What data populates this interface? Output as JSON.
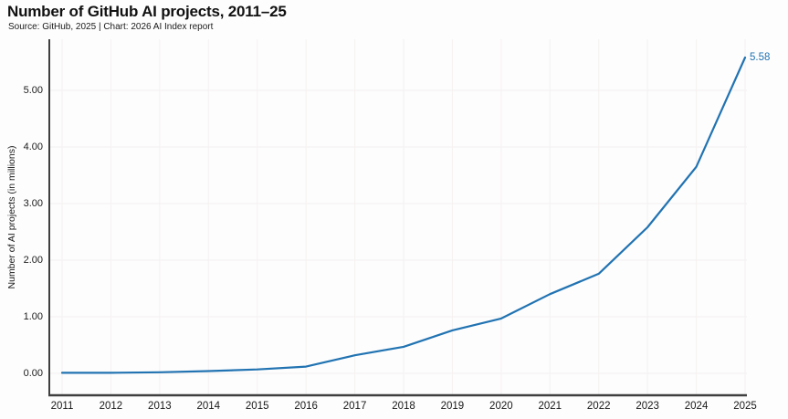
{
  "header": {
    "title": "Number of GitHub AI projects, 2011–25",
    "source_line": "Source: GitHub, 2025 | Chart: 2026 AI Index report"
  },
  "chart_data": {
    "type": "line",
    "title": "Number of GitHub AI projects, 2011–25",
    "subtitle": "Source: GitHub, 2025 | Chart: 2026 AI Index report",
    "xlabel": "",
    "ylabel": "Number of AI projects (in millions)",
    "x": [
      2011,
      2012,
      2013,
      2014,
      2015,
      2016,
      2017,
      2018,
      2019,
      2020,
      2021,
      2022,
      2023,
      2024,
      2025
    ],
    "series": [
      {
        "name": "Number of AI projects (in millions)",
        "values": [
          0.01,
          0.01,
          0.02,
          0.04,
          0.07,
          0.12,
          0.32,
          0.47,
          0.76,
          0.97,
          1.4,
          1.76,
          2.58,
          3.65,
          5.58
        ]
      }
    ],
    "end_label": "5.58",
    "x_tick_labels": [
      "2011",
      "2012",
      "2013",
      "2014",
      "2015",
      "2016",
      "2017",
      "2018",
      "2019",
      "2020",
      "2021",
      "2022",
      "2023",
      "2024",
      "2025"
    ],
    "y_ticks": [
      0,
      1,
      2,
      3,
      4,
      5
    ],
    "y_tick_labels": [
      "0.00",
      "1.00",
      "2.00",
      "3.00",
      "4.00",
      "5.00"
    ],
    "xlim": [
      2011,
      2025
    ],
    "ylim": [
      0,
      5.9
    ],
    "grid": "faint vertical gridline per year and horizontal gridline per 1.00",
    "legend": "none",
    "colors": {
      "line": "#2173b2",
      "end_label": "#2173b2",
      "axis": "#3f3f3f",
      "grid": "#f6f2f2",
      "text": "#111111"
    }
  }
}
